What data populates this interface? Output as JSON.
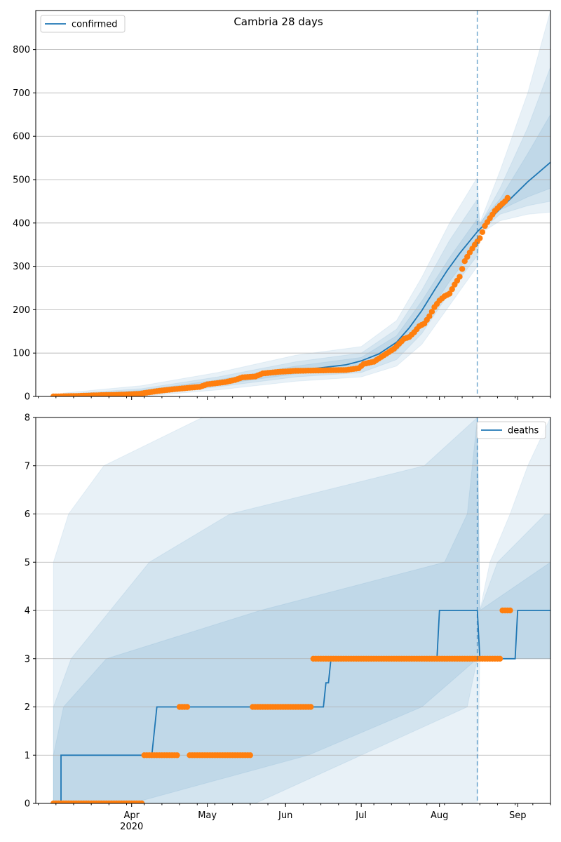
{
  "chart_data": [
    {
      "type": "line",
      "title": "Cambria 28 days",
      "legend": [
        "confirmed"
      ],
      "legend_position": "top-left",
      "ylim": [
        0,
        890
      ],
      "yticks": [
        0,
        100,
        200,
        300,
        400,
        500,
        600,
        700,
        800
      ],
      "grid": "horizontal",
      "forecast_start": "2020-08-16",
      "line_color": "#1f77b4",
      "point_color": "#ff7f0e",
      "band_color": "#1f77b4",
      "line": [
        [
          "2020-03-05",
          0
        ],
        [
          "2020-03-15",
          2
        ],
        [
          "2020-03-25",
          5
        ],
        [
          "2020-04-05",
          10
        ],
        [
          "2020-04-15",
          17
        ],
        [
          "2020-04-25",
          24
        ],
        [
          "2020-05-05",
          33
        ],
        [
          "2020-05-15",
          42
        ],
        [
          "2020-05-25",
          52
        ],
        [
          "2020-06-05",
          60
        ],
        [
          "2020-06-15",
          66
        ],
        [
          "2020-06-25",
          73
        ],
        [
          "2020-07-01",
          82
        ],
        [
          "2020-07-08",
          98
        ],
        [
          "2020-07-15",
          125
        ],
        [
          "2020-07-20",
          158
        ],
        [
          "2020-07-25",
          198
        ],
        [
          "2020-07-30",
          245
        ],
        [
          "2020-08-04",
          290
        ],
        [
          "2020-08-09",
          330
        ],
        [
          "2020-08-16",
          380
        ],
        [
          "2020-08-22",
          415
        ],
        [
          "2020-08-29",
          455
        ],
        [
          "2020-09-05",
          495
        ],
        [
          "2020-09-14",
          540
        ]
      ],
      "bands": [
        {
          "lower": [
            [
              "2020-03-05",
              0
            ],
            [
              "2020-04-05",
              0
            ],
            [
              "2020-05-05",
              15
            ],
            [
              "2020-06-05",
              35
            ],
            [
              "2020-07-01",
              45
            ],
            [
              "2020-07-15",
              70
            ],
            [
              "2020-07-25",
              120
            ],
            [
              "2020-08-05",
              210
            ],
            [
              "2020-08-16",
              300
            ],
            [
              "2020-08-17",
              375
            ],
            [
              "2020-08-25",
              405
            ],
            [
              "2020-09-05",
              420
            ],
            [
              "2020-09-14",
              425
            ]
          ],
          "upper": [
            [
              "2020-03-05",
              8
            ],
            [
              "2020-04-05",
              25
            ],
            [
              "2020-05-05",
              55
            ],
            [
              "2020-06-05",
              95
            ],
            [
              "2020-07-01",
              115
            ],
            [
              "2020-07-15",
              175
            ],
            [
              "2020-07-25",
              275
            ],
            [
              "2020-08-05",
              400
            ],
            [
              "2020-08-16",
              505
            ],
            [
              "2020-08-17",
              400
            ],
            [
              "2020-08-25",
              520
            ],
            [
              "2020-09-05",
              700
            ],
            [
              "2020-09-14",
              890
            ]
          ]
        },
        {
          "lower": [
            [
              "2020-03-05",
              0
            ],
            [
              "2020-04-05",
              2
            ],
            [
              "2020-05-05",
              22
            ],
            [
              "2020-06-05",
              45
            ],
            [
              "2020-07-01",
              55
            ],
            [
              "2020-07-15",
              85
            ],
            [
              "2020-07-25",
              145
            ],
            [
              "2020-08-05",
              240
            ],
            [
              "2020-08-16",
              325
            ],
            [
              "2020-08-17",
              380
            ],
            [
              "2020-08-25",
              420
            ],
            [
              "2020-09-05",
              440
            ],
            [
              "2020-09-14",
              450
            ]
          ],
          "upper": [
            [
              "2020-03-05",
              5
            ],
            [
              "2020-04-05",
              18
            ],
            [
              "2020-05-05",
              45
            ],
            [
              "2020-06-05",
              80
            ],
            [
              "2020-07-01",
              100
            ],
            [
              "2020-07-15",
              155
            ],
            [
              "2020-07-25",
              245
            ],
            [
              "2020-08-05",
              360
            ],
            [
              "2020-08-16",
              455
            ],
            [
              "2020-08-17",
              395
            ],
            [
              "2020-08-25",
              480
            ],
            [
              "2020-09-05",
              620
            ],
            [
              "2020-09-14",
              760
            ]
          ]
        },
        {
          "lower": [
            [
              "2020-03-05",
              0
            ],
            [
              "2020-04-05",
              5
            ],
            [
              "2020-05-05",
              27
            ],
            [
              "2020-06-05",
              52
            ],
            [
              "2020-07-01",
              68
            ],
            [
              "2020-07-15",
              105
            ],
            [
              "2020-07-25",
              170
            ],
            [
              "2020-08-05",
              265
            ],
            [
              "2020-08-16",
              350
            ],
            [
              "2020-08-17",
              385
            ],
            [
              "2020-08-25",
              430
            ],
            [
              "2020-09-05",
              460
            ],
            [
              "2020-09-14",
              480
            ]
          ],
          "upper": [
            [
              "2020-03-05",
              3
            ],
            [
              "2020-04-05",
              14
            ],
            [
              "2020-05-05",
              38
            ],
            [
              "2020-06-05",
              70
            ],
            [
              "2020-07-01",
              90
            ],
            [
              "2020-07-15",
              140
            ],
            [
              "2020-07-25",
              220
            ],
            [
              "2020-08-05",
              320
            ],
            [
              "2020-08-16",
              410
            ],
            [
              "2020-08-17",
              400
            ],
            [
              "2020-08-25",
              455
            ],
            [
              "2020-09-05",
              560
            ],
            [
              "2020-09-14",
              650
            ]
          ]
        }
      ],
      "points": [
        [
          "2020-03-01",
          0
        ],
        [
          "2020-03-10",
          1
        ],
        [
          "2020-03-20",
          3
        ],
        [
          "2020-03-28",
          4
        ],
        [
          "2020-04-04",
          6
        ],
        [
          "2020-04-12",
          13
        ],
        [
          "2020-04-20",
          18
        ],
        [
          "2020-04-28",
          22
        ],
        [
          "2020-05-01",
          28
        ],
        [
          "2020-05-08",
          33
        ],
        [
          "2020-05-12",
          38
        ],
        [
          "2020-05-15",
          44
        ],
        [
          "2020-05-20",
          46
        ],
        [
          "2020-05-23",
          53
        ],
        [
          "2020-05-30",
          57
        ],
        [
          "2020-06-05",
          59
        ],
        [
          "2020-06-15",
          60
        ],
        [
          "2020-06-25",
          61
        ],
        [
          "2020-06-30",
          65
        ],
        [
          "2020-07-02",
          75
        ],
        [
          "2020-07-06",
          80
        ],
        [
          "2020-07-10",
          95
        ],
        [
          "2020-07-14",
          110
        ],
        [
          "2020-07-18",
          133
        ],
        [
          "2020-07-20",
          137
        ],
        [
          "2020-07-22",
          148
        ],
        [
          "2020-07-24",
          162
        ],
        [
          "2020-07-26",
          168
        ],
        [
          "2020-07-28",
          185
        ],
        [
          "2020-07-30",
          206
        ],
        [
          "2020-08-01",
          221
        ],
        [
          "2020-08-03",
          231
        ],
        [
          "2020-08-05",
          237
        ],
        [
          "2020-08-07",
          258
        ],
        [
          "2020-08-09",
          276
        ],
        [
          "2020-08-11",
          312
        ],
        [
          "2020-08-13",
          332
        ],
        [
          "2020-08-15",
          350
        ],
        [
          "2020-08-17",
          365
        ],
        [
          "2020-08-19",
          393
        ],
        [
          "2020-08-21",
          411
        ],
        [
          "2020-08-23",
          428
        ],
        [
          "2020-08-25",
          440
        ],
        [
          "2020-08-27",
          450
        ],
        [
          "2020-08-28",
          458
        ]
      ]
    },
    {
      "type": "line",
      "legend": [
        "deaths"
      ],
      "legend_position": "top-right",
      "ylim": [
        0,
        8
      ],
      "yticks": [
        0,
        1,
        2,
        3,
        4,
        5,
        6,
        7,
        8
      ],
      "grid": "horizontal",
      "xticks": [
        "Apr\n2020",
        "May",
        "Jun",
        "Jul",
        "Aug",
        "Sep"
      ],
      "forecast_start": "2020-08-16",
      "line_color": "#1f77b4",
      "point_color": "#ff7f0e",
      "band_color": "#1f77b4",
      "line": [
        [
          "2020-03-01",
          0
        ],
        [
          "2020-03-04",
          0
        ],
        [
          "2020-03-04",
          1
        ],
        [
          "2020-04-09",
          1
        ],
        [
          "2020-04-11",
          2
        ],
        [
          "2020-06-16",
          2
        ],
        [
          "2020-06-17",
          2.5
        ],
        [
          "2020-06-18",
          2.5
        ],
        [
          "2020-06-19",
          3
        ],
        [
          "2020-07-31",
          3
        ],
        [
          "2020-08-01",
          4
        ],
        [
          "2020-08-16",
          4
        ],
        [
          "2020-08-17",
          3
        ],
        [
          "2020-08-31",
          3
        ],
        [
          "2020-09-01",
          4
        ],
        [
          "2020-09-14",
          4
        ]
      ],
      "bands": [
        {
          "lower": [
            [
              "2020-03-01",
              0
            ],
            [
              "2020-08-16",
              0
            ],
            [
              "2020-08-17",
              3
            ],
            [
              "2020-09-14",
              3
            ]
          ],
          "upper": [
            [
              "2020-03-01",
              5
            ],
            [
              "2020-03-07",
              6
            ],
            [
              "2020-03-21",
              7
            ],
            [
              "2020-04-29",
              8
            ],
            [
              "2020-08-16",
              8
            ],
            [
              "2020-08-17",
              4
            ],
            [
              "2020-08-21",
              5
            ],
            [
              "2020-08-29",
              6
            ],
            [
              "2020-09-05",
              7
            ],
            [
              "2020-09-14",
              8
            ]
          ]
        },
        {
          "lower": [
            [
              "2020-03-01",
              0
            ],
            [
              "2020-04-01",
              0
            ],
            [
              "2020-06-10",
              1
            ],
            [
              "2020-07-25",
              2
            ],
            [
              "2020-08-16",
              3
            ],
            [
              "2020-08-17",
              3
            ],
            [
              "2020-09-14",
              3
            ]
          ],
          "upper": [
            [
              "2020-03-01",
              2
            ],
            [
              "2020-03-08",
              3
            ],
            [
              "2020-04-08",
              5
            ],
            [
              "2020-05-10",
              6
            ],
            [
              "2020-07-26",
              7
            ],
            [
              "2020-08-16",
              8
            ],
            [
              "2020-08-17",
              4
            ],
            [
              "2020-08-24",
              5
            ],
            [
              "2020-09-12",
              6
            ],
            [
              "2020-09-14",
              6
            ]
          ]
        },
        {
          "lower": [
            [
              "2020-03-01",
              0
            ],
            [
              "2020-04-01",
              0
            ],
            [
              "2020-05-20",
              0
            ],
            [
              "2020-07-01",
              1
            ],
            [
              "2020-08-12",
              2
            ],
            [
              "2020-08-16",
              3
            ],
            [
              "2020-08-17",
              3
            ],
            [
              "2020-09-14",
              3
            ]
          ],
          "upper": [
            [
              "2020-03-01",
              1
            ],
            [
              "2020-03-05",
              2
            ],
            [
              "2020-03-22",
              3
            ],
            [
              "2020-05-22",
              4
            ],
            [
              "2020-08-03",
              5
            ],
            [
              "2020-08-12",
              6
            ],
            [
              "2020-08-16",
              8
            ],
            [
              "2020-08-17",
              4
            ],
            [
              "2020-09-14",
              5
            ]
          ]
        }
      ],
      "points": [
        [
          "2020-03-01",
          0
        ],
        [
          "2020-04-05",
          0
        ],
        [
          "2020-04-06",
          1
        ],
        [
          "2020-04-19",
          1
        ],
        [
          "2020-04-20",
          2
        ],
        [
          "2020-04-23",
          2
        ],
        [
          "2020-04-24",
          1
        ],
        [
          "2020-05-18",
          1
        ],
        [
          "2020-05-19",
          2
        ],
        [
          "2020-06-11",
          2
        ],
        [
          "2020-06-12",
          3
        ],
        [
          "2020-08-25",
          3
        ],
        [
          "2020-08-26",
          4
        ],
        [
          "2020-08-29",
          4
        ]
      ]
    }
  ]
}
